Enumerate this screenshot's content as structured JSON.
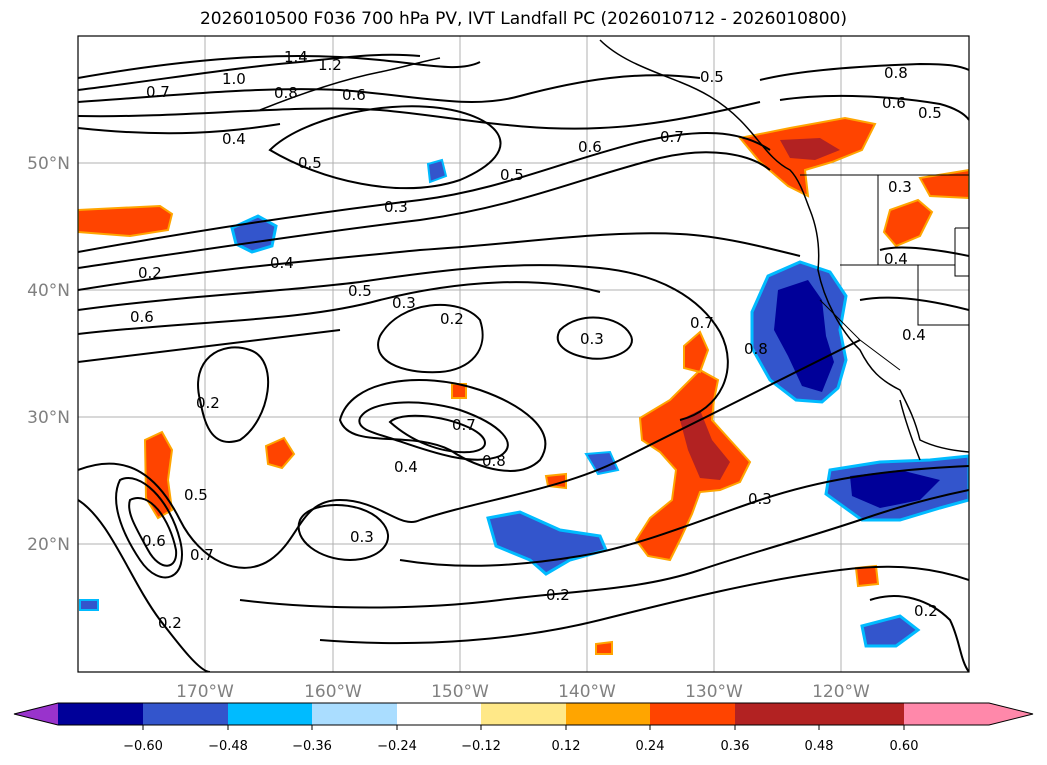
{
  "title": "2026010500 F036 700 hPa PV, IVT Landfall PC (2026010712 - 2026010800)",
  "latitude_labels": [
    "50°N",
    "40°N",
    "30°N",
    "20°N"
  ],
  "longitude_labels": [
    "170°W",
    "160°W",
    "150°W",
    "140°W",
    "130°W",
    "120°W"
  ],
  "contour_labels": [
    "1.4",
    "1.2",
    "1.0",
    "0.8",
    "0.7",
    "0.6",
    "0.4",
    "0.5",
    "0.5",
    "0.6",
    "0.7",
    "0.8",
    "0.6",
    "0.5",
    "0.3",
    "0.2",
    "0.4",
    "0.5",
    "0.2",
    "0.6",
    "0.3",
    "0.2",
    "0.3",
    "0.7",
    "0.8",
    "0.7",
    "0.8",
    "0.4",
    "0.3",
    "0.5",
    "0.6",
    "0.7",
    "0.3",
    "0.2",
    "0.2",
    "0.3",
    "0.4",
    "0.4",
    "0.2",
    "0.5"
  ],
  "colorbar": {
    "tick_labels": [
      "−0.60",
      "−0.48",
      "−0.36",
      "−0.24",
      "−0.12",
      "0.12",
      "0.24",
      "0.36",
      "0.48",
      "0.60"
    ],
    "colors": [
      "#9933cc",
      "#000099",
      "#3355cc",
      "#00bbff",
      "#aaddff",
      "#ffffff",
      "#ffe888",
      "#ffa500",
      "#ff4400",
      "#b22222",
      "#ff88aa"
    ]
  },
  "colors": {
    "negative_strong": "#000099",
    "negative_mid": "#3355cc",
    "negative_light": "#00bbff",
    "positive_mid": "#ff4400",
    "positive_strong": "#b22222"
  }
}
